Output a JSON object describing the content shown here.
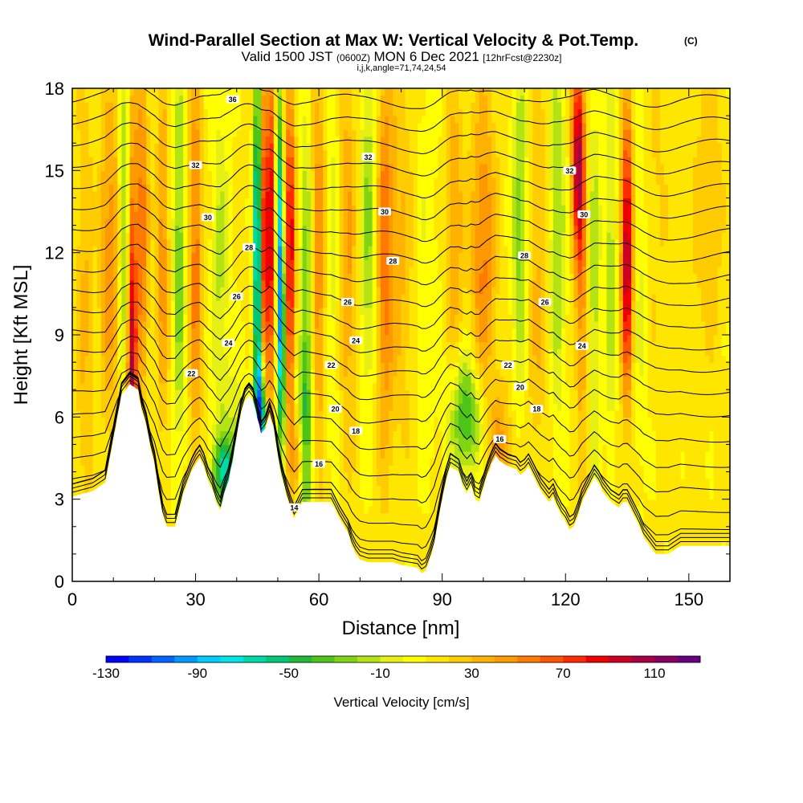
{
  "chart_data": {
    "type": "heatmap",
    "title": "Wind-Parallel Section at Max W: Vertical Velocity & Pot.Temp.",
    "title_mark": "(C)",
    "subtitle_parts": [
      "Valid 1500 JST",
      "(0600Z)",
      "MON 6 Dec 2021",
      "[12hrFcst@2230z]"
    ],
    "subtitle2": "i,j,k,angle=71,74,24,54",
    "xlabel": "Distance [nm]",
    "ylabel": "Height [Kft MSL]",
    "xlim": [
      0,
      160
    ],
    "ylim": [
      0,
      18
    ],
    "x_ticks": [
      0,
      30,
      60,
      90,
      120,
      150
    ],
    "y_ticks": [
      0,
      3,
      6,
      9,
      12,
      15,
      18
    ],
    "x_tick_labels": [
      "0",
      "30",
      "60",
      "90",
      "120",
      "150"
    ],
    "y_tick_labels": [
      "0",
      "3",
      "6",
      "9",
      "12",
      "15",
      "18"
    ],
    "colorbar": {
      "label": "Vertical Velocity [cm/s]",
      "min": -130,
      "max": 130,
      "step": 10,
      "ticks": [
        "-130",
        "-90",
        "-50",
        "-10",
        "30",
        "70",
        "110"
      ],
      "colors": [
        "#0000ff",
        "#0033ff",
        "#0066ff",
        "#0099ff",
        "#00ccff",
        "#00e5e5",
        "#00d9a8",
        "#00c878",
        "#22b838",
        "#4cc418",
        "#7fd414",
        "#b4e314",
        "#e6f014",
        "#ffff00",
        "#ffe600",
        "#ffcc00",
        "#ffb300",
        "#ff9900",
        "#ff7a00",
        "#ff5500",
        "#ff2a00",
        "#ee0000",
        "#cc0022",
        "#a80044",
        "#880066",
        "#66007f"
      ]
    },
    "terrain_kft": [
      [
        0,
        3.1
      ],
      [
        5,
        3.3
      ],
      [
        8,
        3.6
      ],
      [
        10,
        5.2
      ],
      [
        12,
        6.8
      ],
      [
        14,
        7.2
      ],
      [
        16,
        7.0
      ],
      [
        17,
        6.2
      ],
      [
        18,
        5.7
      ],
      [
        19,
        4.9
      ],
      [
        20,
        4.3
      ],
      [
        21,
        3.3
      ],
      [
        22,
        2.4
      ],
      [
        23,
        2.0
      ],
      [
        25,
        2.0
      ],
      [
        26,
        2.6
      ],
      [
        27,
        3.2
      ],
      [
        28,
        3.6
      ],
      [
        29,
        4.0
      ],
      [
        30,
        4.3
      ],
      [
        31,
        4.5
      ],
      [
        32,
        4.2
      ],
      [
        33,
        3.7
      ],
      [
        34,
        3.4
      ],
      [
        35,
        2.9
      ],
      [
        36,
        2.6
      ],
      [
        37,
        3.2
      ],
      [
        38,
        3.7
      ],
      [
        39,
        4.4
      ],
      [
        40,
        5.3
      ],
      [
        41,
        6.1
      ],
      [
        42,
        6.6
      ],
      [
        43,
        6.8
      ],
      [
        44,
        6.6
      ],
      [
        45,
        6.0
      ],
      [
        46,
        5.4
      ],
      [
        47,
        5.6
      ],
      [
        48,
        6.1
      ],
      [
        49,
        5.6
      ],
      [
        50,
        4.6
      ],
      [
        51,
        3.8
      ],
      [
        52,
        3.2
      ],
      [
        53,
        2.7
      ],
      [
        54,
        2.3
      ],
      [
        55,
        2.6
      ],
      [
        56,
        2.9
      ],
      [
        60,
        2.9
      ],
      [
        63,
        2.9
      ],
      [
        65,
        2.3
      ],
      [
        67,
        1.8
      ],
      [
        68,
        1.3
      ],
      [
        69,
        1.0
      ],
      [
        70,
        0.8
      ],
      [
        72,
        0.7
      ],
      [
        75,
        0.7
      ],
      [
        78,
        0.7
      ],
      [
        80,
        0.6
      ],
      [
        82,
        0.55
      ],
      [
        84,
        0.5
      ],
      [
        85,
        0.3
      ],
      [
        86,
        0.4
      ],
      [
        87,
        0.8
      ],
      [
        88,
        1.3
      ],
      [
        89,
        2.2
      ],
      [
        90,
        3.0
      ],
      [
        91,
        3.7
      ],
      [
        92,
        4.2
      ],
      [
        94,
        4.0
      ],
      [
        95,
        3.5
      ],
      [
        96,
        3.2
      ],
      [
        97,
        3.5
      ],
      [
        98,
        3.0
      ],
      [
        99,
        2.9
      ],
      [
        100,
        3.4
      ],
      [
        101,
        3.9
      ],
      [
        102,
        4.3
      ],
      [
        103,
        4.6
      ],
      [
        104,
        4.4
      ],
      [
        106,
        4.2
      ],
      [
        108,
        4.1
      ],
      [
        109,
        3.9
      ],
      [
        110,
        4.0
      ],
      [
        111,
        4.2
      ],
      [
        112,
        3.9
      ],
      [
        113,
        3.6
      ],
      [
        114,
        3.3
      ],
      [
        115,
        3.1
      ],
      [
        116,
        2.9
      ],
      [
        117,
        3.1
      ],
      [
        118,
        2.7
      ],
      [
        119,
        2.4
      ],
      [
        120,
        2.2
      ],
      [
        121,
        1.9
      ],
      [
        122,
        2.0
      ],
      [
        123,
        2.4
      ],
      [
        124,
        2.9
      ],
      [
        125,
        3.2
      ],
      [
        126,
        3.5
      ],
      [
        127,
        3.8
      ],
      [
        128,
        3.6
      ],
      [
        129,
        3.3
      ],
      [
        130,
        3.1
      ],
      [
        131,
        2.9
      ],
      [
        132,
        2.8
      ],
      [
        133,
        2.7
      ],
      [
        134,
        2.9
      ],
      [
        135,
        2.9
      ],
      [
        136,
        2.6
      ],
      [
        137,
        2.3
      ],
      [
        138,
        2.0
      ],
      [
        139,
        1.6
      ],
      [
        140,
        1.4
      ],
      [
        141,
        1.2
      ],
      [
        142,
        1.0
      ],
      [
        145,
        1.0
      ],
      [
        148,
        1.3
      ],
      [
        150,
        1.3
      ],
      [
        155,
        1.3
      ],
      [
        160,
        1.3
      ]
    ],
    "w_features": [
      [
        14.5,
        7.0,
        1.2,
        9.0,
        95
      ],
      [
        17,
        13.0,
        1.5,
        6.0,
        45
      ],
      [
        13,
        13.0,
        1.5,
        6.0,
        -40
      ],
      [
        10,
        12,
        1.5,
        6,
        30
      ],
      [
        8,
        12,
        1.5,
        6,
        25
      ],
      [
        3,
        10,
        2,
        8,
        20
      ],
      [
        22,
        12,
        1.5,
        6,
        35
      ],
      [
        26,
        12,
        1.5,
        7,
        -40
      ],
      [
        30,
        12,
        1.5,
        7,
        45
      ],
      [
        36,
        11,
        2,
        7,
        -25
      ],
      [
        37,
        4.0,
        3,
        1.2,
        -60
      ],
      [
        40,
        5.0,
        3,
        2.5,
        -25
      ],
      [
        45,
        12,
        0.9,
        7,
        -100
      ],
      [
        46,
        5.5,
        1.2,
        2.5,
        -130
      ],
      [
        47,
        12,
        1.0,
        7,
        85
      ],
      [
        49,
        13,
        0.9,
        6,
        95
      ],
      [
        50,
        13,
        0.8,
        6,
        -110
      ],
      [
        51,
        9,
        0.8,
        4,
        -95
      ],
      [
        53,
        12,
        1.2,
        6,
        80
      ],
      [
        55,
        4.5,
        2,
        1.5,
        40
      ],
      [
        56,
        5,
        2,
        3,
        -30
      ],
      [
        57,
        9,
        1.5,
        8,
        -45
      ],
      [
        60,
        12,
        2,
        7,
        40
      ],
      [
        63,
        12,
        2,
        7,
        -20
      ],
      [
        67,
        12,
        2,
        7,
        30
      ],
      [
        72,
        13,
        2,
        6,
        -35
      ],
      [
        76,
        12,
        2,
        7,
        45
      ],
      [
        80,
        12,
        3,
        7,
        20
      ],
      [
        86,
        12,
        3,
        7,
        -10
      ],
      [
        96,
        6.0,
        4,
        2.2,
        -55
      ],
      [
        93,
        13,
        2,
        5,
        30
      ],
      [
        100,
        12,
        3,
        6,
        40
      ],
      [
        104,
        5,
        3,
        2,
        30
      ],
      [
        109,
        13,
        2,
        6,
        -40
      ],
      [
        113,
        11,
        3,
        7,
        20
      ],
      [
        118,
        13,
        2,
        7,
        -35
      ],
      [
        123,
        15.5,
        1.5,
        3.5,
        85
      ],
      [
        124,
        11,
        1.5,
        6,
        35
      ],
      [
        127,
        11,
        1.5,
        7,
        -30
      ],
      [
        131,
        12,
        1.2,
        7,
        -30
      ],
      [
        135,
        12,
        1.4,
        5,
        95
      ],
      [
        138,
        11,
        2,
        7,
        -15
      ],
      [
        142,
        14,
        3,
        6,
        10
      ],
      [
        150,
        11,
        3,
        7,
        5
      ],
      [
        155,
        14,
        3,
        5,
        20
      ]
    ],
    "theta_levels": [
      {
        "value": "14",
        "base_kft": 0.5,
        "gap_kft": 0.15
      },
      {
        "value": "15",
        "base_kft": 1.0,
        "gap_kft": 0.3
      },
      {
        "value": "16",
        "base_kft": 1.9,
        "gap_kft": 0.45
      },
      {
        "value": "17",
        "base_kft": 2.4,
        "gap_kft": 0.45
      },
      {
        "value": "18",
        "base_kft": 3.0,
        "gap_kft": 0.45
      },
      {
        "value": "19",
        "base_kft": 3.8,
        "gap_kft": 0.45
      },
      {
        "value": "20",
        "base_kft": 4.6,
        "gap_kft": 0.45
      },
      {
        "value": "21",
        "base_kft": 5.5,
        "gap_kft": 0.45
      },
      {
        "value": "22",
        "base_kft": 6.4,
        "gap_kft": 0.45
      },
      {
        "value": "23",
        "base_kft": 7.2,
        "gap_kft": 0.45
      },
      {
        "value": "24",
        "base_kft": 8.0,
        "gap_kft": 0.45
      },
      {
        "value": "25",
        "base_kft": 8.8,
        "gap_kft": 0.45
      },
      {
        "value": "26",
        "base_kft": 9.6,
        "gap_kft": 0.45
      },
      {
        "value": "27",
        "base_kft": 10.4,
        "gap_kft": 0.45
      },
      {
        "value": "28",
        "base_kft": 11.2,
        "gap_kft": 0.45
      },
      {
        "value": "29",
        "base_kft": 12.0,
        "gap_kft": 0.45
      },
      {
        "value": "30",
        "base_kft": 12.8,
        "gap_kft": 0.45
      },
      {
        "value": "31",
        "base_kft": 13.6,
        "gap_kft": 0.45
      },
      {
        "value": "32",
        "base_kft": 14.4,
        "gap_kft": 0.45
      },
      {
        "value": "33",
        "base_kft": 15.2,
        "gap_kft": 0.45
      },
      {
        "value": "34",
        "base_kft": 16.0,
        "gap_kft": 0.45
      },
      {
        "value": "35",
        "base_kft": 16.8,
        "gap_kft": 0.45
      },
      {
        "value": "36",
        "base_kft": 17.6,
        "gap_kft": 0.45
      },
      {
        "value": "37",
        "base_kft": 18.4,
        "gap_kft": 0.45
      }
    ],
    "contour_labels": [
      {
        "text": "36",
        "x": 39,
        "y": 17.6
      },
      {
        "text": "32",
        "x": 30,
        "y": 15.2
      },
      {
        "text": "32",
        "x": 72,
        "y": 15.5
      },
      {
        "text": "32",
        "x": 121,
        "y": 15.0
      },
      {
        "text": "30",
        "x": 33,
        "y": 13.3
      },
      {
        "text": "30",
        "x": 76,
        "y": 13.5
      },
      {
        "text": "30",
        "x": 124.5,
        "y": 13.4
      },
      {
        "text": "28",
        "x": 43,
        "y": 12.2
      },
      {
        "text": "28",
        "x": 78,
        "y": 11.7
      },
      {
        "text": "28",
        "x": 110,
        "y": 11.9
      },
      {
        "text": "26",
        "x": 40,
        "y": 10.4
      },
      {
        "text": "26",
        "x": 67,
        "y": 10.2
      },
      {
        "text": "26",
        "x": 115,
        "y": 10.2
      },
      {
        "text": "24",
        "x": 38,
        "y": 8.7
      },
      {
        "text": "24",
        "x": 69,
        "y": 8.8
      },
      {
        "text": "24",
        "x": 124,
        "y": 8.6
      },
      {
        "text": "22",
        "x": 29,
        "y": 7.6
      },
      {
        "text": "22",
        "x": 63,
        "y": 7.9
      },
      {
        "text": "22",
        "x": 106,
        "y": 7.9
      },
      {
        "text": "20",
        "x": 64,
        "y": 6.3
      },
      {
        "text": "20",
        "x": 109,
        "y": 7.1
      },
      {
        "text": "18",
        "x": 69,
        "y": 5.5
      },
      {
        "text": "18",
        "x": 113,
        "y": 6.3
      },
      {
        "text": "16",
        "x": 60,
        "y": 4.3
      },
      {
        "text": "16",
        "x": 104,
        "y": 5.2
      },
      {
        "text": "14",
        "x": 54,
        "y": 2.7
      }
    ]
  }
}
